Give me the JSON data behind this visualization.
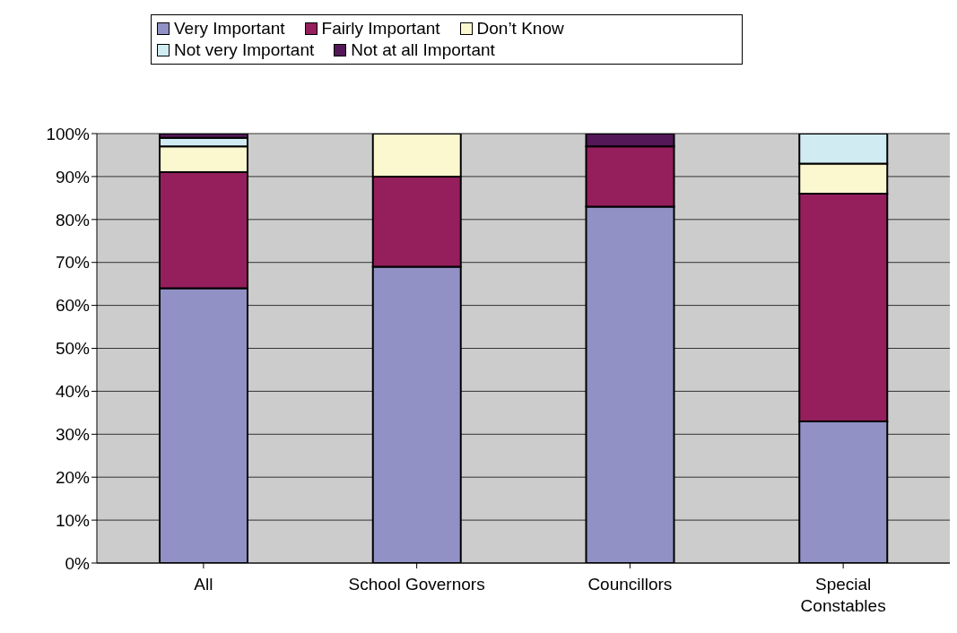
{
  "chart_data": {
    "type": "bar",
    "stacked": true,
    "categories": [
      "All",
      "School Governors",
      "Councillors",
      "Special Constables"
    ],
    "series": [
      {
        "name": "Very Important",
        "color": "#9191c6",
        "values": [
          64,
          69,
          83,
          33
        ]
      },
      {
        "name": "Fairly Important",
        "color": "#941f5c",
        "values": [
          27,
          21,
          14,
          53
        ]
      },
      {
        "name": "Don’t Know",
        "color": "#fbf8cf",
        "values": [
          6,
          10,
          null,
          7
        ]
      },
      {
        "name": "Not very Important",
        "color": "#d0ecf2",
        "values": [
          2,
          null,
          null,
          7
        ]
      },
      {
        "name": "Not at all Important",
        "color": "#541757",
        "values": [
          1,
          null,
          3,
          null
        ]
      }
    ],
    "ylim": [
      0,
      100
    ],
    "yticks": [
      {
        "value": 0,
        "label": "0%"
      },
      {
        "value": 10,
        "label": "10%"
      },
      {
        "value": 20,
        "label": "20%"
      },
      {
        "value": 30,
        "label": "30%"
      },
      {
        "value": 40,
        "label": "40%"
      },
      {
        "value": 50,
        "label": "50%"
      },
      {
        "value": 60,
        "label": "60%"
      },
      {
        "value": 70,
        "label": "70%"
      },
      {
        "value": 80,
        "label": "80%"
      },
      {
        "value": 90,
        "label": "90%"
      },
      {
        "value": 100,
        "label": "100%"
      }
    ],
    "grid": "y",
    "legend": "top"
  }
}
